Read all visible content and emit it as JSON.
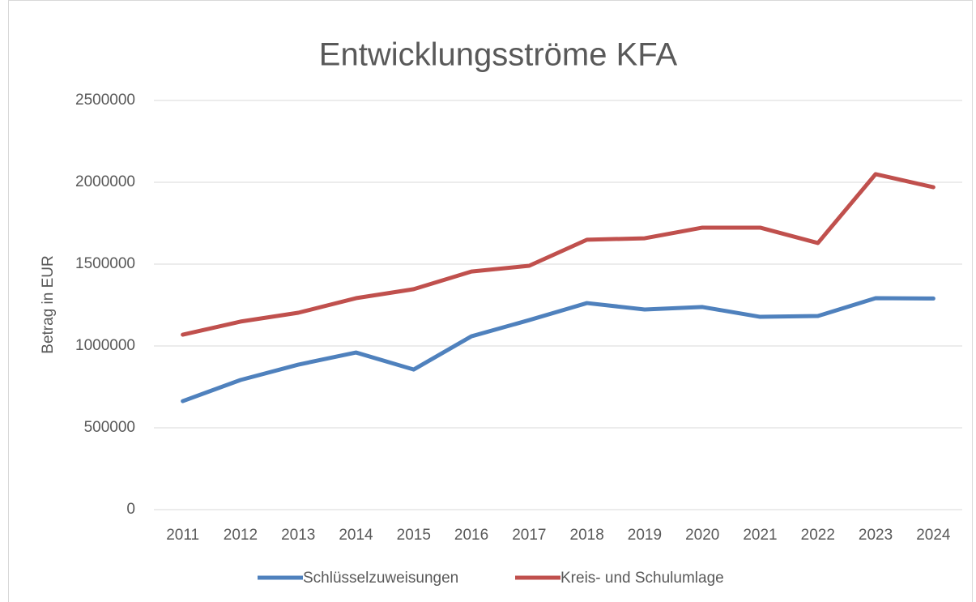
{
  "chart_data": {
    "type": "line",
    "title": "Entwicklungsströme KFA",
    "y_label": "Betrag in EUR",
    "categories": [
      "2011",
      "2012",
      "2013",
      "2014",
      "2015",
      "2016",
      "2017",
      "2018",
      "2019",
      "2020",
      "2021",
      "2022",
      "2023",
      "2024"
    ],
    "series": [
      {
        "name": "Schlüsselzuweisungen",
        "color": "#4f81bd",
        "values": [
          663000,
          792000,
          886000,
          960000,
          856000,
          1059000,
          1158000,
          1262000,
          1223000,
          1238000,
          1178000,
          1183000,
          1292000,
          1290000
        ]
      },
      {
        "name": "Kreis- und Schulumlage",
        "color": "#c0504d",
        "values": [
          1069000,
          1149000,
          1203000,
          1292000,
          1347000,
          1455000,
          1490000,
          1649000,
          1658000,
          1723000,
          1723000,
          1629000,
          2050000,
          1970000
        ]
      }
    ],
    "ylim": [
      0,
      2500000
    ],
    "yticks": [
      0,
      500000,
      1000000,
      1500000,
      2000000,
      2500000
    ],
    "grid": true,
    "legend": "bottom"
  }
}
